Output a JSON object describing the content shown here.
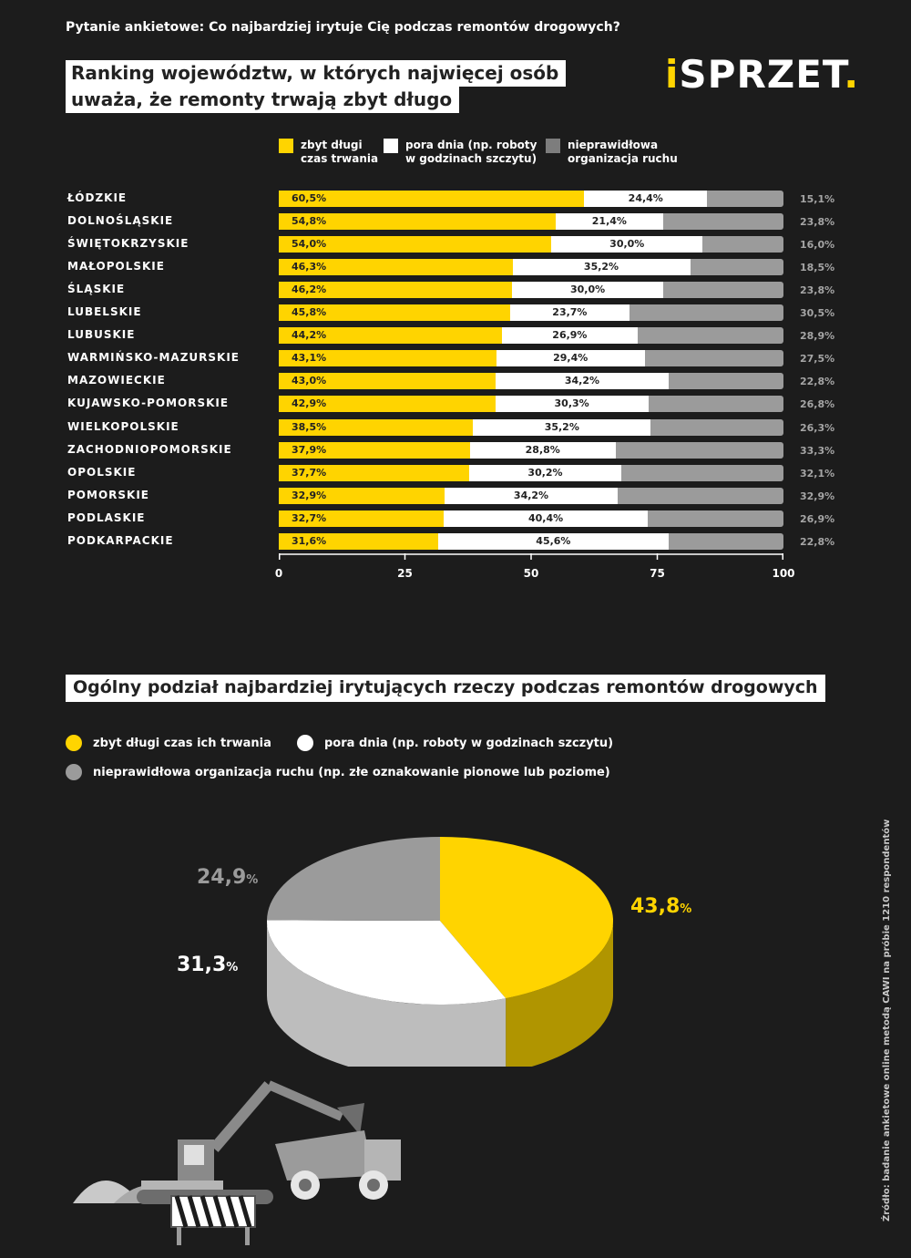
{
  "question": "Pytanie ankietowe: Co najbardziej irytuje Cię podczas remontów drogowych?",
  "title_lines": [
    "Ranking województw, w których najwięcej osób",
    "uważa, że remonty trwają zbyt długo"
  ],
  "logo": {
    "i": "i",
    "main": "SPRZET",
    "dot": "."
  },
  "colors": {
    "yellow": "#ffd400",
    "white": "#ffffff",
    "gray": "#9b9b9b",
    "background": "#1c1c1c"
  },
  "chart_data": [
    {
      "type": "bar",
      "orientation": "horizontal-stacked",
      "legend": [
        {
          "label": "zbyt długi\nczas trwania",
          "color": "#ffd400"
        },
        {
          "label": "pora dnia (np. roboty\nw godzinach szczytu)",
          "color": "#ffffff"
        },
        {
          "label": "nieprawidłowa\norganizacja ruchu",
          "color": "#7d7d7d"
        }
      ],
      "xlim": [
        0,
        100
      ],
      "ticks": [
        "0",
        "25",
        "50",
        "75",
        "100"
      ],
      "rows": [
        {
          "region": "ŁÓDZKIE",
          "y": 60.5,
          "w": 24.4,
          "g": 15.1,
          "y_label": "60,5%",
          "w_label": "24,4%",
          "g_label": "15,1%"
        },
        {
          "region": "DOLNOŚLĄSKIE",
          "y": 54.8,
          "w": 21.4,
          "g": 23.8,
          "y_label": "54,8%",
          "w_label": "21,4%",
          "g_label": "23,8%"
        },
        {
          "region": "ŚWIĘTOKRZYSKIE",
          "y": 54.0,
          "w": 30.0,
          "g": 16.0,
          "y_label": "54,0%",
          "w_label": "30,0%",
          "g_label": "16,0%"
        },
        {
          "region": "MAŁOPOLSKIE",
          "y": 46.3,
          "w": 35.2,
          "g": 18.5,
          "y_label": "46,3%",
          "w_label": "35,2%",
          "g_label": "18,5%"
        },
        {
          "region": "ŚLĄSKIE",
          "y": 46.2,
          "w": 30.0,
          "g": 23.8,
          "y_label": "46,2%",
          "w_label": "30,0%",
          "g_label": "23,8%"
        },
        {
          "region": "LUBELSKIE",
          "y": 45.8,
          "w": 23.7,
          "g": 30.5,
          "y_label": "45,8%",
          "w_label": "23,7%",
          "g_label": "30,5%"
        },
        {
          "region": "LUBUSKIE",
          "y": 44.2,
          "w": 26.9,
          "g": 28.9,
          "y_label": "44,2%",
          "w_label": "26,9%",
          "g_label": "28,9%"
        },
        {
          "region": "WARMIŃSKO-MAZURSKIE",
          "y": 43.1,
          "w": 29.4,
          "g": 27.5,
          "y_label": "43,1%",
          "w_label": "29,4%",
          "g_label": "27,5%"
        },
        {
          "region": "MAZOWIECKIE",
          "y": 43.0,
          "w": 34.2,
          "g": 22.8,
          "y_label": "43,0%",
          "w_label": "34,2%",
          "g_label": "22,8%"
        },
        {
          "region": "KUJAWSKO-POMORSKIE",
          "y": 42.9,
          "w": 30.3,
          "g": 26.8,
          "y_label": "42,9%",
          "w_label": "30,3%",
          "g_label": "26,8%"
        },
        {
          "region": "WIELKOPOLSKIE",
          "y": 38.5,
          "w": 35.2,
          "g": 26.3,
          "y_label": "38,5%",
          "w_label": "35,2%",
          "g_label": "26,3%"
        },
        {
          "region": "ZACHODNIOPOMORSKIE",
          "y": 37.9,
          "w": 28.8,
          "g": 33.3,
          "y_label": "37,9%",
          "w_label": "28,8%",
          "g_label": "33,3%"
        },
        {
          "region": "OPOLSKIE",
          "y": 37.7,
          "w": 30.2,
          "g": 32.1,
          "y_label": "37,7%",
          "w_label": "30,2%",
          "g_label": "32,1%"
        },
        {
          "region": "POMORSKIE",
          "y": 32.9,
          "w": 34.2,
          "g": 32.9,
          "y_label": "32,9%",
          "w_label": "34,2%",
          "g_label": "32,9%"
        },
        {
          "region": "PODLASKIE",
          "y": 32.7,
          "w": 40.4,
          "g": 26.9,
          "y_label": "32,7%",
          "w_label": "40,4%",
          "g_label": "26,9%"
        },
        {
          "region": "PODKARPACKIE",
          "y": 31.6,
          "w": 45.6,
          "g": 22.8,
          "y_label": "31,6%",
          "w_label": "45,6%",
          "g_label": "22,8%"
        }
      ]
    },
    {
      "type": "pie",
      "title": "Ogólny podział najbardziej irytujących rzeczy podczas remontów drogowych",
      "legend": [
        {
          "label": "zbyt długi czas ich trwania",
          "color": "#ffd400"
        },
        {
          "label": "pora dnia (np. roboty w godzinach szczytu)",
          "color": "#ffffff"
        },
        {
          "label": "nieprawidłowa organizacja ruchu (np. złe oznakowanie pionowe lub poziome)",
          "color": "#9b9b9b"
        }
      ],
      "slices": [
        {
          "value": 43.8,
          "label": "43,8",
          "color": "#ffd400",
          "side_color": "#b09500",
          "text_color": "#ffd400"
        },
        {
          "value": 31.3,
          "label": "31,3",
          "color": "#ffffff",
          "side_color": "#bdbdbd",
          "text_color": "#ffffff"
        },
        {
          "value": 24.9,
          "label": "24,9",
          "color": "#9b9b9b",
          "side_color": "#6e6e6e",
          "text_color": "#9b9b9b"
        }
      ],
      "pct_sign": "%"
    }
  ],
  "source": "Źródło: badanie ankietowe online metodą CAWI na próbie 1210 respondentów"
}
